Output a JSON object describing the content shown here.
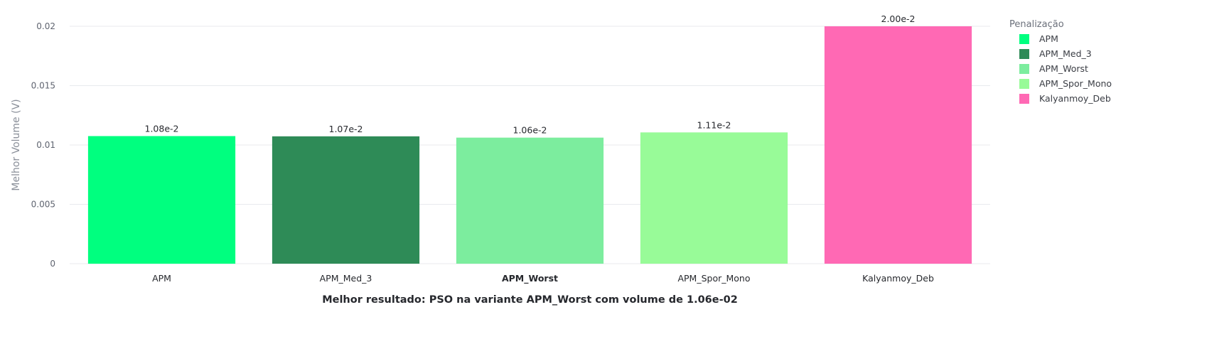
{
  "chart_data": {
    "type": "bar",
    "categories": [
      "APM",
      "APM_Med_3",
      "APM_Worst",
      "APM_Spor_Mono",
      "Kalyanmoy_Deb"
    ],
    "values": [
      0.01075,
      0.01073,
      0.01062,
      0.01106,
      0.02
    ],
    "data_labels": [
      "1.08e-2",
      "1.07e-2",
      "1.06e-2",
      "1.11e-2",
      "2.00e-2"
    ],
    "colors": [
      "#00ff7f",
      "#2e8b57",
      "#7ced9e",
      "#98fb98",
      "#ff69b4"
    ],
    "highlight_category": "APM_Worst",
    "ylabel": "Melhor Volume (V)",
    "xlabel": "Melhor resultado: PSO na variante APM_Worst com volume de 1.06e-02",
    "ylim": [
      0,
      0.02
    ],
    "yticks": [
      0,
      0.005,
      0.01,
      0.015,
      0.02
    ],
    "ytick_labels": [
      "0",
      "0.005",
      "0.01",
      "0.015",
      "0.02"
    ],
    "grid": true,
    "legend": {
      "title": "Penalização",
      "position": "right",
      "entries": [
        "APM",
        "APM_Med_3",
        "APM_Worst",
        "APM_Spor_Mono",
        "Kalyanmoy_Deb"
      ]
    }
  }
}
